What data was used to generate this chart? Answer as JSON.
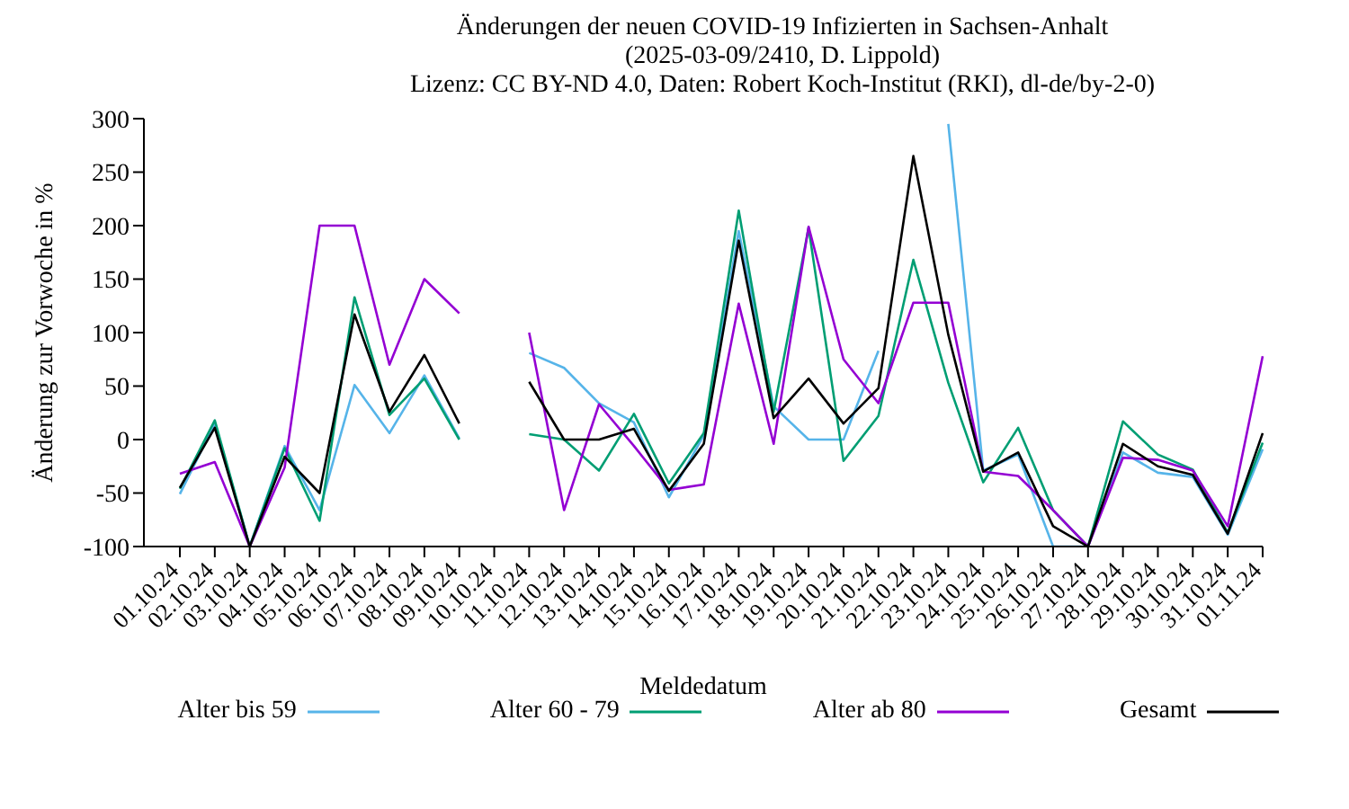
{
  "chart_data": {
    "type": "line",
    "title": "Änderungen der neuen COVID-19 Infizierten in Sachsen-Anhalt",
    "subtitle": "(2025-03-09/2410, D. Lippold)\nLizenz: CC BY-ND 4.0, Daten: Robert Koch-Institut (RKI), dl-de/by-2-0)",
    "xlabel": "Meldedatum",
    "ylabel": "Änderung zur Vorwoche in %",
    "categories": [
      "01.10.24",
      "02.10.24",
      "03.10.24",
      "04.10.24",
      "05.10.24",
      "06.10.24",
      "07.10.24",
      "08.10.24",
      "09.10.24",
      "10.10.24",
      "11.10.24",
      "12.10.24",
      "13.10.24",
      "14.10.24",
      "15.10.24",
      "16.10.24",
      "17.10.24",
      "18.10.24",
      "19.10.24",
      "20.10.24",
      "21.10.24",
      "22.10.24",
      "23.10.24",
      "24.10.24",
      "25.10.24",
      "26.10.24",
      "27.10.24",
      "28.10.24",
      "29.10.24",
      "30.10.24",
      "31.10.24",
      "01.11.24"
    ],
    "series": [
      {
        "name": "Alter bis 59",
        "color": "#56b4e9",
        "values": [
          -51,
          15,
          -100,
          -6,
          -66,
          51,
          6,
          60,
          1,
          null,
          81,
          67,
          34,
          16,
          -54,
          4,
          195,
          31,
          0,
          0,
          83,
          null,
          295,
          -29,
          -14,
          -100,
          -100,
          -12,
          -31,
          -35,
          -89,
          -9
        ]
      },
      {
        "name": "Alter 60 - 79",
        "color": "#009e73",
        "values": [
          -46,
          18,
          -100,
          -8,
          -76,
          133,
          23,
          57,
          0,
          null,
          5,
          0,
          -29,
          24,
          -41,
          6,
          214,
          26,
          198,
          -20,
          22,
          168,
          53,
          -40,
          11,
          -66,
          -100,
          17,
          -14,
          -28,
          -87,
          -3
        ]
      },
      {
        "name": "Alter ab 80",
        "color": "#9400d3",
        "values": [
          -32,
          -21,
          -100,
          -26,
          200,
          200,
          70,
          150,
          118,
          null,
          100,
          -66,
          33,
          -6,
          -47,
          -42,
          127,
          -4,
          199,
          75,
          34,
          128,
          128,
          -30,
          -34,
          -66,
          -100,
          -17,
          -19,
          -29,
          -81,
          78
        ]
      },
      {
        "name": "Gesamt",
        "color": "#000000",
        "values": [
          -45,
          11,
          -100,
          -16,
          -50,
          117,
          26,
          79,
          15,
          null,
          54,
          0,
          0,
          10,
          -48,
          -4,
          186,
          20,
          57,
          15,
          48,
          265,
          98,
          -30,
          -12,
          -81,
          -100,
          -4,
          -25,
          -33,
          -88,
          6
        ]
      }
    ],
    "ylim": [
      -100,
      300
    ],
    "yticks": [
      -100,
      -50,
      0,
      50,
      100,
      150,
      200,
      250,
      300
    ],
    "legend": "bottom",
    "marker": "none",
    "line_style": "solid"
  }
}
